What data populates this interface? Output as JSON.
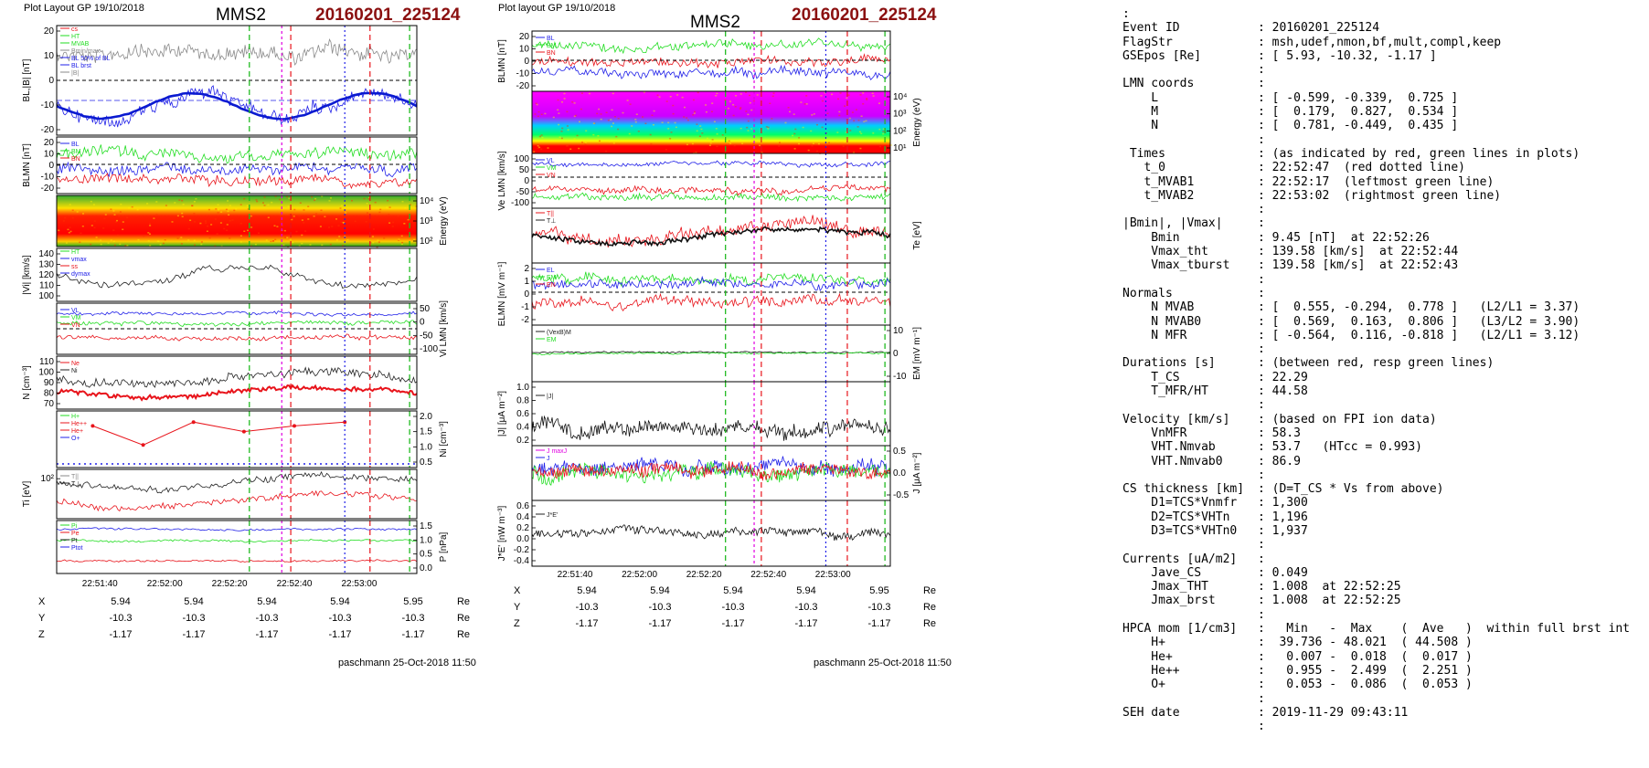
{
  "left": {
    "layout_label": "Plot Layout GP 19/10/2018",
    "spacecraft": "MMS2",
    "event": "20160201_225124",
    "credit": "paschmann 25-Oct-2018 11:50",
    "times": [
      "22:51:40",
      "22:52:00",
      "22:52:20",
      "22:52:40",
      "22:53:00"
    ],
    "coords": {
      "labels": [
        "X",
        "Y",
        "Z"
      ],
      "rows": [
        [
          "5.94",
          "5.94",
          "5.94",
          "5.94",
          "5.95"
        ],
        [
          "-10.3",
          "-10.3",
          "-10.3",
          "-10.3",
          "-10.3"
        ],
        [
          "-1.17",
          "-1.17",
          "-1.17",
          "-1.17",
          "-1.17"
        ]
      ],
      "unit": "Re"
    },
    "legend": {
      "b": [
        "cs",
        "HT",
        "MVAB",
        "Bmin/max",
        "BL 50% of BL",
        "BL brst",
        "|B|"
      ],
      "blmn": [
        "BL",
        "BM",
        "BN"
      ],
      "vi": [
        "HT",
        "vmax",
        "ss",
        "dymax"
      ],
      "vlmn": [
        "VL",
        "VM",
        "VN"
      ],
      "n": [
        "Ne",
        "Ni"
      ],
      "nih": [
        "H+",
        "He++",
        "He+",
        "O+"
      ],
      "ti": [
        "T||",
        "T⊥"
      ],
      "p": [
        "Pi",
        "Pe",
        "Pt",
        "Ptot"
      ]
    },
    "panels": [
      {
        "ylabel": "BL,|B| [nT]",
        "ticks": [
          "20",
          "10",
          "0",
          "-10",
          "-20"
        ],
        "side": "left"
      },
      {
        "ylabel": "BLMN [nT]",
        "ticks": [
          "20",
          "10",
          "0",
          "-10",
          "-20"
        ],
        "side": "left"
      },
      {
        "ylabel": "Energy (eV)",
        "ticks": [
          "10⁴",
          "10³",
          "10²"
        ],
        "side": "right"
      },
      {
        "ylabel": "|Vi| [km/s]",
        "ticks": [
          "140",
          "130",
          "120",
          "110",
          "100"
        ],
        "side": "left"
      },
      {
        "ylabel": "Vi LMN [km/s]",
        "ticks": [
          "50",
          "0",
          "-50",
          "-100"
        ],
        "side": "right"
      },
      {
        "ylabel": "N [cm⁻³]",
        "ticks": [
          "110",
          "100",
          "90",
          "80",
          "70"
        ],
        "side": "left"
      },
      {
        "ylabel": "Ni [cm⁻³]",
        "ticks": [
          "2.0",
          "1.5",
          "1.0",
          "0.5"
        ],
        "side": "right"
      },
      {
        "ylabel": "Ti [eV]",
        "ticks": [
          "10²"
        ],
        "side": "left"
      },
      {
        "ylabel": "P [nPa]",
        "ticks": [
          "1.5",
          "1.0",
          "0.5",
          "0.0"
        ],
        "side": "right"
      }
    ]
  },
  "middle": {
    "layout_label": "Plot layout GP 19/10/2018",
    "spacecraft": "MMS2",
    "event": "20160201_225124",
    "credit": "paschmann 25-Oct-2018 11:50",
    "times": [
      "22:51:40",
      "22:52:00",
      "22:52:20",
      "22:52:40",
      "22:53:00"
    ],
    "coords": {
      "labels": [
        "X",
        "Y",
        "Z"
      ],
      "rows": [
        [
          "5.94",
          "5.94",
          "5.94",
          "5.94",
          "5.95"
        ],
        [
          "-10.3",
          "-10.3",
          "-10.3",
          "-10.3",
          "-10.3"
        ],
        [
          "-1.17",
          "-1.17",
          "-1.17",
          "-1.17",
          "-1.17"
        ]
      ],
      "unit": "Re"
    },
    "legend": {
      "b": [
        "BL",
        "BM",
        "BN"
      ],
      "ve": [
        "VL",
        "VM",
        "VN"
      ],
      "te": [
        "T||",
        "T⊥"
      ],
      "e": [
        "EL",
        "EM",
        "EN"
      ],
      "em": [
        "(VexB)M",
        "EM"
      ],
      "j": [
        "|J|"
      ],
      "jlmn": [
        "J maxJ",
        "J"
      ],
      "je": [
        "J*E'"
      ]
    },
    "panels": [
      {
        "ylabel": "BLMN [nT]",
        "ticks": [
          "20",
          "10",
          "0",
          "-10",
          "-20"
        ],
        "side": "left"
      },
      {
        "ylabel": "Energy (eV)",
        "ticks": [
          "10⁴",
          "10³",
          "10²",
          "10¹"
        ],
        "side": "right"
      },
      {
        "ylabel": "Ve LMN [km/s]",
        "ticks": [
          "100",
          "50",
          "0",
          "-50",
          "-100"
        ],
        "side": "left"
      },
      {
        "ylabel": "Te [eV]",
        "ticks": [],
        "side": "right"
      },
      {
        "ylabel": "ELMN [mV m⁻¹]",
        "ticks": [
          "2",
          "1",
          "0",
          "-1",
          "-2"
        ],
        "side": "left"
      },
      {
        "ylabel": "EM [mV m⁻¹]",
        "ticks": [
          "10",
          "0",
          "-10"
        ],
        "side": "right"
      },
      {
        "ylabel": "|J| [μA m⁻²]",
        "ticks": [
          "1.0",
          "0.8",
          "0.6",
          "0.4",
          "0.2"
        ],
        "side": "left"
      },
      {
        "ylabel": "J [μA m⁻²]",
        "ticks": [
          "0.5",
          "0.0",
          "-0.5"
        ],
        "side": "right"
      },
      {
        "ylabel": "J*E' [nW m⁻³]",
        "ticks": [
          "0.6",
          "0.4",
          "0.2",
          "0.0",
          "-0.2",
          "-0.4"
        ],
        "side": "left"
      }
    ]
  },
  "info": {
    "rows": [
      [
        ":",
        ""
      ],
      [
        "Event ID",
        ": 20160201_225124"
      ],
      [
        "FlagStr",
        ": msh,udef,nmon,bf,mult,compl,keep"
      ],
      [
        "GSEpos [Re]",
        ": [ 5.93, -10.32, -1.17 ]"
      ],
      [
        "",
        ":"
      ],
      [
        "LMN coords",
        ":"
      ],
      [
        "    L",
        ": [ -0.599, -0.339,  0.725 ]"
      ],
      [
        "    M",
        ": [  0.179,  0.827,  0.534 ]"
      ],
      [
        "    N",
        ": [  0.781, -0.449,  0.435 ]"
      ],
      [
        "",
        ":"
      ],
      [
        " Times",
        ": (as indicated by red, green lines in plots)"
      ],
      [
        "   t_0",
        ": 22:52:47  (red dotted line)"
      ],
      [
        "   t_MVAB1",
        ": 22:52:17  (leftmost green line)"
      ],
      [
        "   t_MVAB2",
        ": 22:53:02  (rightmost green line)"
      ],
      [
        "",
        ":"
      ],
      [
        "|Bmin|, |Vmax|",
        ":"
      ],
      [
        "    Bmin",
        ": 9.45 [nT]  at 22:52:26"
      ],
      [
        "    Vmax_tht",
        ": 139.58 [km/s]  at 22:52:44"
      ],
      [
        "    Vmax_tburst",
        ": 139.58 [km/s]  at 22:52:43"
      ],
      [
        "",
        ":"
      ],
      [
        "Normals",
        ":"
      ],
      [
        "    N MVAB",
        ": [  0.555, -0.294,  0.778 ]   (L2/L1 = 3.37)"
      ],
      [
        "    N MVAB0",
        ": [  0.569,  0.163,  0.806 ]   (L3/L2 = 3.90)"
      ],
      [
        "    N MFR",
        ": [ -0.564,  0.116, -0.818 ]   (L2/L1 = 3.12)"
      ],
      [
        "",
        ":"
      ],
      [
        "Durations [s]",
        ": (between red, resp green lines)"
      ],
      [
        "    T_CS",
        ": 22.29"
      ],
      [
        "    T_MFR/HT",
        ": 44.58"
      ],
      [
        "",
        ":"
      ],
      [
        "Velocity [km/s]",
        ": (based on FPI ion data)"
      ],
      [
        "    VnMFR",
        ": 58.3"
      ],
      [
        "    VHT.Nmvab",
        ": 53.7   (HTcc = 0.993)"
      ],
      [
        "    VHT.Nmvab0",
        ": 86.9"
      ],
      [
        "",
        ":"
      ],
      [
        "CS thickness [km]",
        ": (D=T_CS * Vs from above)"
      ],
      [
        "    D1=TCS*Vnmfr",
        ": 1,300"
      ],
      [
        "    D2=TCS*VHTn",
        ": 1,196"
      ],
      [
        "    D3=TCS*VHTn0",
        ": 1,937"
      ],
      [
        "",
        ":"
      ],
      [
        "Currents [uA/m2]",
        ":"
      ],
      [
        "    Jave_CS",
        ": 0.049"
      ],
      [
        "    Jmax_THT",
        ": 1.008  at 22:52:25"
      ],
      [
        "    Jmax_brst",
        ": 1.008  at 22:52:25"
      ],
      [
        "",
        ":"
      ],
      [
        "HPCA mom [1/cm3]",
        ":   Min   -  Max    (  Ave   )  within full brst int"
      ],
      [
        "    H+",
        ":  39.736 - 48.021  ( 44.508 )"
      ],
      [
        "    He+",
        ":   0.007 -  0.018  (  0.017 )"
      ],
      [
        "    He++",
        ":   0.955 -  2.499  (  2.251 )"
      ],
      [
        "    O+",
        ":   0.053 -  0.086  (  0.053 )"
      ],
      [
        "",
        ":"
      ],
      [
        "SEH date",
        ": 2019-11-29 09:43:11"
      ],
      [
        "",
        ":"
      ]
    ]
  },
  "colors": {
    "red": "#e8141b",
    "green": "#22dd22",
    "blue": "#2020e8",
    "black": "#111111",
    "gray": "#8a8a8a",
    "event": "#8b1010",
    "magenta": "#e000e0"
  },
  "chart_data": [
    {
      "type": "line",
      "title": "MMS2",
      "ylabel": "BL,|B| [nT]",
      "ylim": [
        -25,
        25
      ],
      "series": [
        {
          "name": "BL"
        },
        {
          "name": "|B|"
        }
      ]
    },
    {
      "type": "line",
      "ylabel": "|Vi| [km/s]",
      "ylim": [
        98,
        140
      ]
    },
    {
      "type": "line",
      "ylabel": "N [cm⁻³]",
      "ylim": [
        65,
        112
      ],
      "series": [
        {
          "name": "Ne"
        },
        {
          "name": "Ni"
        }
      ]
    },
    {
      "type": "line",
      "ylabel": "Ni [cm⁻³]",
      "series": [
        {
          "name": "He+",
          "x": [
            0.08,
            0.22,
            0.36,
            0.5,
            0.64,
            0.78
          ],
          "values": [
            1.8,
            0.8,
            2.0,
            1.5,
            1.8,
            2.0
          ]
        }
      ]
    },
    {
      "type": "line",
      "ylabel": "|J| [μA m⁻²]",
      "ylim": [
        0,
        1.0
      ]
    },
    {
      "type": "line",
      "ylabel": "J*E' [nW m⁻³]",
      "ylim": [
        -0.45,
        0.65
      ]
    }
  ]
}
